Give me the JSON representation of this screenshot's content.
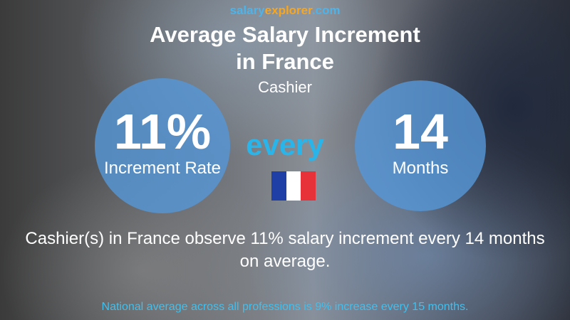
{
  "header": {
    "logo": {
      "part1": "salary",
      "part2": "explorer",
      "part3": ".com"
    },
    "title_line1": "Average Salary Increment",
    "title_line2": "in France",
    "subtitle": "Cashier"
  },
  "left_circle": {
    "value": "11%",
    "label": "Increment Rate"
  },
  "connector": "every",
  "right_circle": {
    "value": "14",
    "label": "Months"
  },
  "summary": "Cashier(s) in France observe 11% salary increment every 14 months on average.",
  "footer": "National average across all professions is 9% increase every 15 months."
}
